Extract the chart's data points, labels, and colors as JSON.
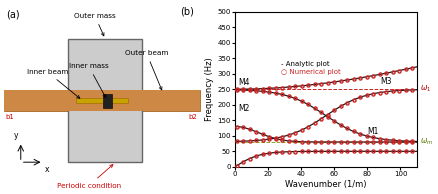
{
  "title_a": "(a)",
  "title_b": "(b)",
  "xlabel": "Wavenumber (1/m)",
  "ylabel": "Frequency (Hz)",
  "xlim": [
    0,
    110
  ],
  "ylim": [
    0,
    500
  ],
  "yticks": [
    0,
    50,
    100,
    150,
    200,
    250,
    300,
    350,
    400,
    450,
    500
  ],
  "xticks": [
    0,
    20,
    40,
    60,
    80,
    100
  ],
  "omega1": 250,
  "omega_m": 80,
  "analytic_color": "#1a1a1a",
  "numerical_color": "#cc2222",
  "dashed_color_red": "#cc2222",
  "dashed_color_green": "#88aa22",
  "label_analytic": "- Analytic plot",
  "label_numerical": "○ Numerical plot"
}
